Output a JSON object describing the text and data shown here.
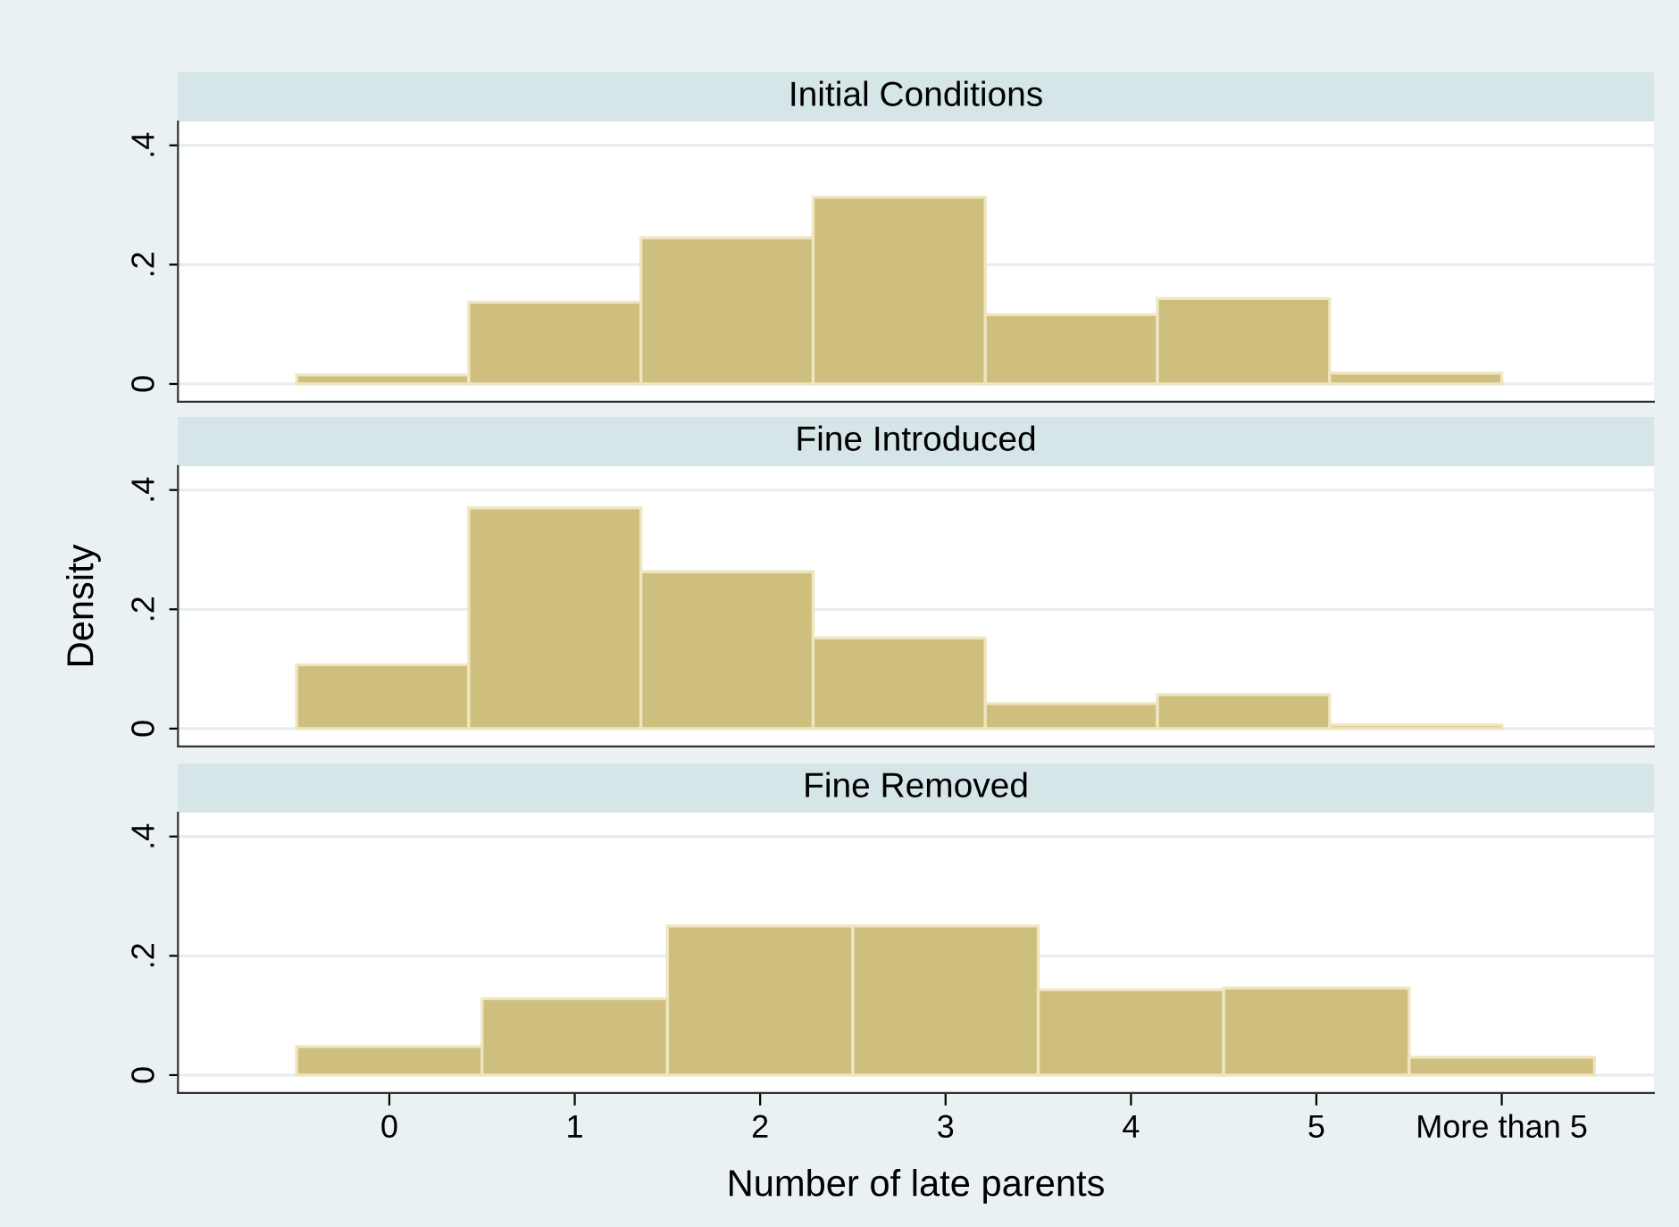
{
  "chart_data": [
    {
      "type": "histogram",
      "title": "Initial Conditions",
      "bins": [
        -0.5,
        0.4286,
        1.3571,
        2.2857,
        3.2143,
        4.1429,
        5.0714,
        6.0
      ],
      "values": [
        0.015,
        0.137,
        0.245,
        0.313,
        0.116,
        0.143,
        0.018
      ],
      "color": "#cfbf7e",
      "xlim": [
        -1.14,
        6.82
      ],
      "ylim": [
        -0.03,
        0.44
      ],
      "yticks": [
        {
          "value": 0,
          "label": "0"
        },
        {
          "value": 0.2,
          "label": ".2"
        },
        {
          "value": 0.4,
          "label": ".4"
        }
      ],
      "grid": "y",
      "tick_labels": "y"
    },
    {
      "type": "histogram",
      "title": "Fine Introduced",
      "ylabel": "Density",
      "bins": [
        -0.5,
        0.4286,
        1.3571,
        2.2857,
        3.2143,
        4.1429,
        5.0714,
        6.0
      ],
      "values": [
        0.107,
        0.37,
        0.263,
        0.152,
        0.042,
        0.057,
        0.006
      ],
      "color": "#cfbf7e",
      "xlim": [
        -1.14,
        6.82
      ],
      "ylim": [
        -0.03,
        0.44
      ],
      "yticks": [
        {
          "value": 0,
          "label": "0"
        },
        {
          "value": 0.2,
          "label": ".2"
        },
        {
          "value": 0.4,
          "label": ".4"
        }
      ],
      "grid": "y",
      "tick_labels": "y"
    },
    {
      "type": "histogram",
      "title": "Fine Removed",
      "xlabel": "Number of late parents",
      "bins": [
        -0.5,
        0.5,
        1.5,
        2.5,
        3.5,
        4.5,
        5.5,
        6.5
      ],
      "values": [
        0.048,
        0.128,
        0.25,
        0.25,
        0.143,
        0.146,
        0.03
      ],
      "color": "#cfbf7e",
      "xlim": [
        -1.14,
        6.82
      ],
      "xticks": [
        0,
        1,
        2,
        3,
        4,
        5,
        {
          "value": 6,
          "label": "More than 5"
        }
      ],
      "ylim": [
        -0.03,
        0.44
      ],
      "yticks": [
        {
          "value": 0,
          "label": "0"
        },
        {
          "value": 0.2,
          "label": ".2"
        },
        {
          "value": 0.4,
          "label": ".4"
        }
      ],
      "grid": "y"
    }
  ]
}
